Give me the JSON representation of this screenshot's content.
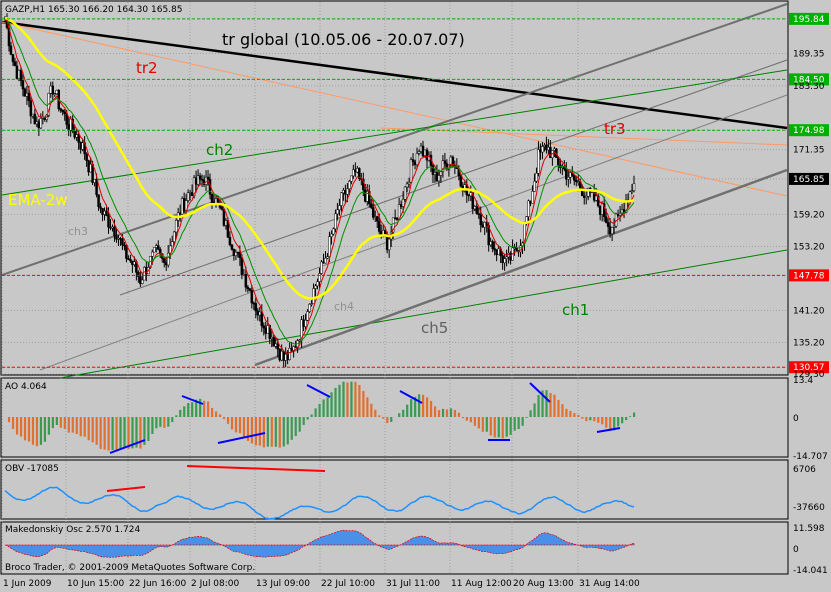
{
  "header": {
    "main": "GAZP,H1  165.30 166.20 164.30 165.85",
    "ao": "AO 4.064",
    "obv": "OBV -17085",
    "mak": "Makedonskiy Osc 2.570 1.724",
    "copyright": "Broco Trader, © 2001-2009 MetaQuotes Software Corp."
  },
  "annotations": {
    "title": "tr global (10.05.06 - 20.07.07)",
    "tr2": "tr2",
    "tr3": "tr3",
    "ch1": "ch1",
    "ch2": "ch2",
    "ch3": "ch3",
    "ch4": "ch4",
    "ch5": "ch5",
    "ema": "EMA-2w"
  },
  "colors": {
    "background": "#c8c8c8",
    "grid": "#a0a0a0",
    "candle": "#000000",
    "ema_fast_red": "#e00000",
    "ema_green": "#009000",
    "ema_yellow": "#ffff00",
    "trend_black": "#000000",
    "trend_orange": "#ff9966",
    "channel_green": "#008000",
    "channel_gray": "#707070",
    "ao_up": "#3a9a50",
    "ao_down": "#e07030",
    "obv_line": "#1e90ff",
    "mak_fill": "#4a90e8"
  },
  "chart_data": [
    {
      "type": "line",
      "title": "GAZP,H1",
      "series_note": "H1 candles with moving averages and manual trend channels",
      "y_ticks": [
        195.84,
        189.35,
        184.5,
        183.3,
        174.98,
        171.35,
        165.85,
        159.2,
        153.2,
        147.78,
        141.2,
        135.2,
        130.57,
        129.3
      ],
      "ylim": [
        129.3,
        199.0
      ],
      "highlighted_levels": [
        {
          "value": 195.84,
          "color": "#00b000"
        },
        {
          "value": 184.5,
          "color": "#00b000"
        },
        {
          "value": 174.98,
          "color": "#00b000"
        },
        {
          "value": 165.85,
          "color": "#000000"
        },
        {
          "value": 147.78,
          "color": "#ff0000"
        },
        {
          "value": 130.57,
          "color": "#ff0000"
        }
      ],
      "x_ticks": [
        "1 Jun 2009",
        "10 Jun 15:00",
        "22 Jun 16:00",
        "2 Jul 08:00",
        "13 Jul 09:00",
        "22 Jul 10:00",
        "31 Jul 11:00",
        "11 Aug 12:00",
        "20 Aug 13:00",
        "31 Aug 14:00"
      ],
      "close_path": [
        196,
        188,
        184,
        180,
        176,
        178,
        183,
        179,
        176,
        174,
        171,
        166,
        160,
        158,
        156,
        152,
        150,
        147,
        150,
        152,
        150,
        155,
        160,
        163,
        165,
        166,
        163,
        160,
        156,
        152,
        148,
        144,
        140,
        138,
        135,
        132,
        133,
        137,
        142,
        146,
        150,
        155,
        161,
        164,
        167,
        164,
        160,
        156,
        154,
        158,
        163,
        168,
        172,
        170,
        166,
        168,
        170,
        167,
        163,
        161,
        158,
        154,
        152,
        150,
        152,
        155,
        162,
        170,
        172,
        170,
        168,
        166,
        165,
        163,
        162,
        160,
        157,
        158,
        162,
        165
      ]
    },
    {
      "type": "bar",
      "title": "AO 4.064",
      "y_ticks": [
        13.4,
        0.0,
        -14.707
      ],
      "ylim": [
        -14.707,
        13.4
      ]
    },
    {
      "type": "line",
      "title": "OBV -17085",
      "y_ticks": [
        6706,
        -37660
      ],
      "ylim": [
        -37660,
        6706
      ]
    },
    {
      "type": "area",
      "title": "Makedonskiy Osc 2.570 1.724",
      "y_ticks": [
        11.598,
        0.0,
        -14.041
      ],
      "ylim": [
        -14.041,
        11.598
      ]
    }
  ]
}
